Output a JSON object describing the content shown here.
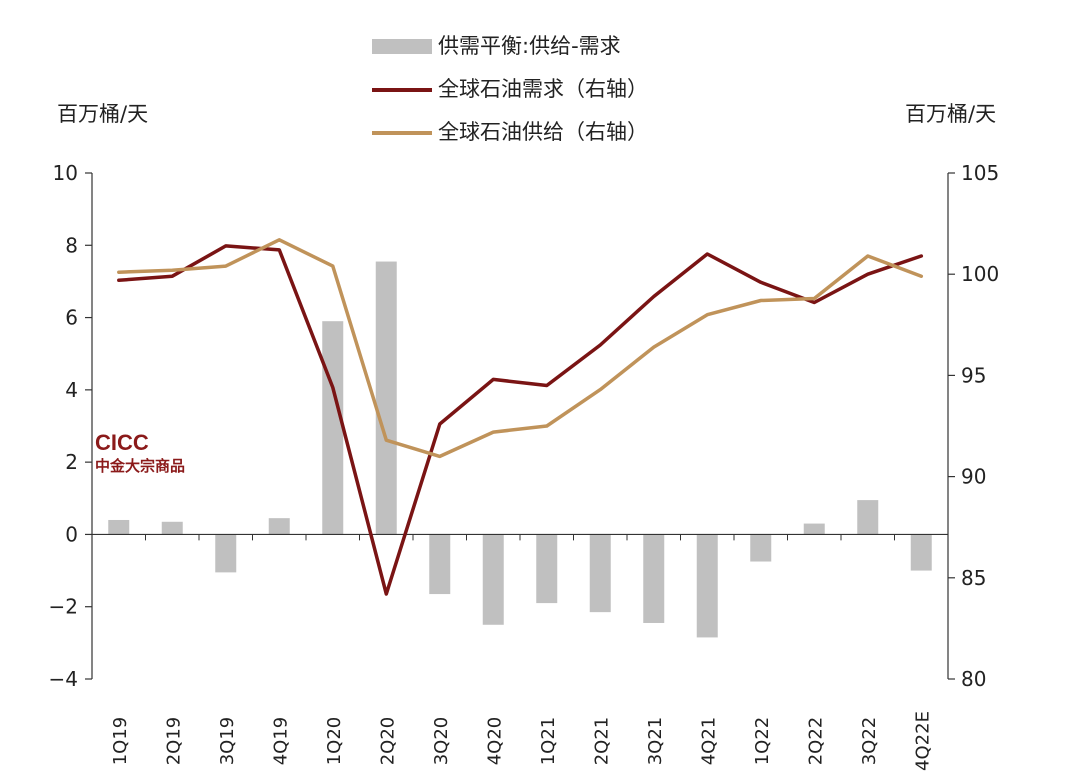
{
  "chart_data": {
    "type": "bar+line",
    "categories": [
      "1Q19",
      "2Q19",
      "3Q19",
      "4Q19",
      "1Q20",
      "2Q20",
      "3Q20",
      "4Q20",
      "1Q21",
      "2Q21",
      "3Q21",
      "4Q21",
      "1Q22",
      "2Q22",
      "3Q22",
      "4Q22E"
    ],
    "left_unit": "百万桶/天",
    "right_unit": "百万桶/天",
    "ylim_left": [
      -4,
      10
    ],
    "yticks_left": [
      "10",
      "8",
      "6",
      "4",
      "2",
      "0",
      "−2",
      "−4"
    ],
    "ylim_right": [
      80,
      105
    ],
    "yticks_right": [
      "105",
      "100",
      "95",
      "90",
      "85",
      "80"
    ],
    "series": [
      {
        "name": "供需平衡:供给-需求",
        "type": "bar",
        "axis": "left",
        "color": "#c0c0c0",
        "values": [
          0.4,
          0.35,
          -1.05,
          0.45,
          5.9,
          7.55,
          -1.65,
          -2.5,
          -1.9,
          -2.15,
          -2.45,
          -2.85,
          -0.75,
          0.3,
          0.95,
          -1.0
        ]
      },
      {
        "name": "全球石油需求（右轴）",
        "type": "line",
        "axis": "right",
        "color": "#7a1414",
        "values": [
          99.7,
          99.9,
          101.4,
          101.2,
          94.4,
          84.2,
          92.6,
          94.8,
          94.5,
          96.5,
          98.9,
          101.0,
          99.6,
          98.6,
          100.0,
          100.9
        ]
      },
      {
        "name": "全球石油供给（右轴）",
        "type": "line",
        "axis": "right",
        "color": "#c0935a",
        "values": [
          100.1,
          100.2,
          100.4,
          101.7,
          100.4,
          91.8,
          91.0,
          92.2,
          92.5,
          94.3,
          96.4,
          98.0,
          98.7,
          98.8,
          100.9,
          99.9
        ]
      }
    ]
  },
  "brand": {
    "en": "CICC",
    "cn": "中金大宗商品"
  }
}
